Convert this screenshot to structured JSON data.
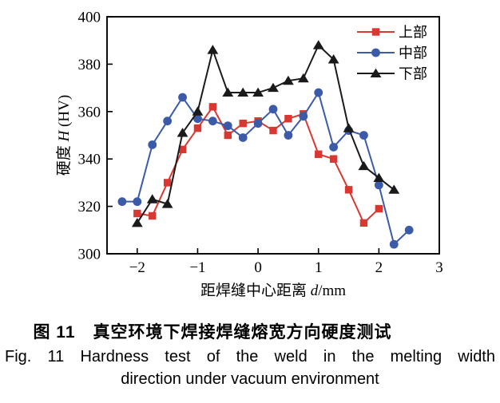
{
  "figure": {
    "caption_zh": "图 11　真空环境下焊接焊缝熔宽方向硬度测试",
    "caption_en_line1": "Fig. 11 Hardness test of the weld in the melting width",
    "caption_en_line2": "direction under vacuum environment"
  },
  "chart_data": {
    "type": "line",
    "xlabel": "距焊缝中心距离 d/mm",
    "ylabel": "硬度 H (HV)",
    "xlim": [
      -2.5,
      3
    ],
    "ylim": [
      300,
      400
    ],
    "x_ticks": [
      -2,
      -1,
      0,
      1,
      2,
      3
    ],
    "y_ticks": [
      300,
      320,
      340,
      360,
      380,
      400
    ],
    "grid": false,
    "legend_position": "top-right-inside",
    "axis_color": "#000000",
    "series": [
      {
        "name": "上部",
        "color": "#d93832",
        "marker": "square",
        "x": [
          -2,
          -1.75,
          -1.5,
          -1.25,
          -1,
          -0.75,
          -0.5,
          -0.25,
          0,
          0.25,
          0.5,
          0.75,
          1,
          1.25,
          1.5,
          1.75,
          2
        ],
        "y": [
          317,
          316,
          330,
          344,
          353,
          362,
          350,
          355,
          356,
          352,
          357,
          359,
          342,
          340,
          327,
          313,
          319
        ]
      },
      {
        "name": "中部",
        "color": "#3b5ba8",
        "marker": "circle",
        "x": [
          -2.25,
          -2,
          -1.75,
          -1.5,
          -1.25,
          -1,
          -0.75,
          -0.5,
          -0.25,
          0,
          0.25,
          0.5,
          0.75,
          1,
          1.25,
          1.5,
          1.75,
          2,
          2.25,
          2.5
        ],
        "y": [
          322,
          322,
          346,
          356,
          366,
          357,
          356,
          354,
          349,
          355,
          361,
          350,
          358,
          368,
          345,
          352,
          350,
          329,
          304,
          310
        ]
      },
      {
        "name": "下部",
        "color": "#1a1a1a",
        "marker": "triangle",
        "x": [
          -2,
          -1.75,
          -1.5,
          -1.25,
          -1,
          -0.75,
          -0.5,
          -0.25,
          0,
          0.25,
          0.5,
          0.75,
          1,
          1.25,
          1.5,
          1.75,
          2,
          2.25
        ],
        "y": [
          313,
          323,
          321,
          351,
          360,
          386,
          368,
          368,
          368,
          370,
          373,
          374,
          388,
          382,
          353,
          337,
          332,
          327
        ]
      }
    ]
  }
}
